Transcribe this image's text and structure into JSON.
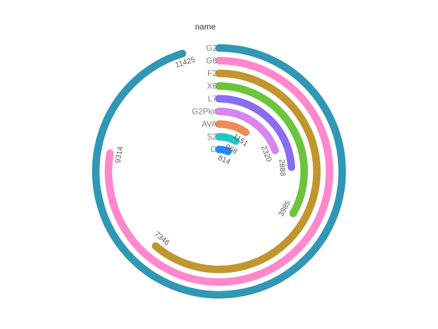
{
  "chart_data": {
    "type": "radial-bar",
    "axis_title": "name",
    "max_value": 12000,
    "categories": [
      "G2",
      "G6",
      "F2",
      "X6",
      "L7",
      "G2Plot",
      "AVA",
      "S2",
      "G"
    ],
    "values": [
      11425,
      9314,
      7346,
      3985,
      2888,
      2320,
      1151,
      968,
      814
    ],
    "value_labels": [
      "11425",
      "9314",
      "7346",
      "3985",
      "2888",
      "2320",
      "1151",
      "968",
      "814"
    ],
    "colors": [
      "#3097b5",
      "#ff88cc",
      "#c2962f",
      "#6ac53c",
      "#8a6cf2",
      "#d786ee",
      "#ef8956",
      "#1ec9c5",
      "#2487ff"
    ],
    "legend": "none",
    "grid": false
  }
}
